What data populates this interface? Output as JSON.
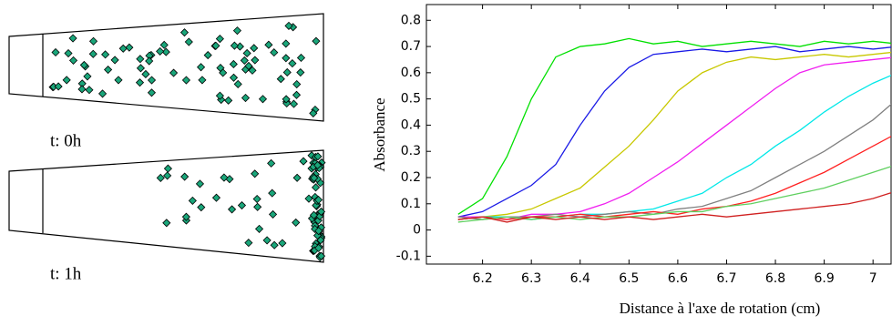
{
  "chart_data": {
    "type": "line",
    "annotations": [
      "t: 0h",
      "t: 1h"
    ],
    "y_label": "Absorbance",
    "x_label": "Distance  à l'axe de rotation (cm)",
    "x": [
      6.15,
      6.2,
      6.25,
      6.3,
      6.35,
      6.4,
      6.45,
      6.5,
      6.55,
      6.6,
      6.65,
      6.7,
      6.75,
      6.8,
      6.85,
      6.9,
      6.95,
      7.0,
      7.05
    ],
    "series": [
      {
        "color": "#00e000",
        "values": [
          0.06,
          0.12,
          0.28,
          0.5,
          0.66,
          0.7,
          0.71,
          0.73,
          0.71,
          0.72,
          0.7,
          0.71,
          0.72,
          0.71,
          0.7,
          0.72,
          0.71,
          0.72,
          0.71
        ]
      },
      {
        "color": "#1a1ae6",
        "values": [
          0.05,
          0.07,
          0.12,
          0.17,
          0.25,
          0.4,
          0.53,
          0.62,
          0.67,
          0.68,
          0.69,
          0.68,
          0.69,
          0.7,
          0.68,
          0.69,
          0.7,
          0.69,
          0.7
        ]
      },
      {
        "color": "#c8c800",
        "values": [
          0.04,
          0.05,
          0.06,
          0.08,
          0.12,
          0.16,
          0.24,
          0.32,
          0.42,
          0.53,
          0.6,
          0.64,
          0.66,
          0.65,
          0.66,
          0.67,
          0.66,
          0.67,
          0.68
        ]
      },
      {
        "color": "#f020f0",
        "values": [
          0.05,
          0.05,
          0.04,
          0.06,
          0.06,
          0.07,
          0.1,
          0.14,
          0.2,
          0.26,
          0.33,
          0.4,
          0.47,
          0.54,
          0.6,
          0.63,
          0.64,
          0.65,
          0.66
        ]
      },
      {
        "color": "#00e8e8",
        "values": [
          0.04,
          0.05,
          0.05,
          0.04,
          0.05,
          0.06,
          0.06,
          0.07,
          0.08,
          0.11,
          0.14,
          0.2,
          0.25,
          0.32,
          0.38,
          0.45,
          0.51,
          0.56,
          0.6
        ]
      },
      {
        "color": "#808080",
        "values": [
          0.05,
          0.04,
          0.05,
          0.05,
          0.06,
          0.05,
          0.06,
          0.07,
          0.06,
          0.08,
          0.09,
          0.12,
          0.15,
          0.2,
          0.25,
          0.3,
          0.36,
          0.42,
          0.5
        ]
      },
      {
        "color": "#ff2020",
        "values": [
          0.04,
          0.05,
          0.04,
          0.05,
          0.05,
          0.06,
          0.05,
          0.06,
          0.07,
          0.06,
          0.08,
          0.09,
          0.11,
          0.14,
          0.18,
          0.22,
          0.27,
          0.32,
          0.37
        ]
      },
      {
        "color": "#60d060",
        "values": [
          0.03,
          0.04,
          0.05,
          0.04,
          0.05,
          0.04,
          0.05,
          0.05,
          0.06,
          0.07,
          0.07,
          0.09,
          0.1,
          0.12,
          0.14,
          0.16,
          0.19,
          0.22,
          0.25
        ]
      },
      {
        "color": "#d02020",
        "values": [
          0.04,
          0.05,
          0.03,
          0.05,
          0.04,
          0.05,
          0.04,
          0.05,
          0.04,
          0.05,
          0.06,
          0.05,
          0.06,
          0.07,
          0.08,
          0.09,
          0.1,
          0.12,
          0.15
        ]
      }
    ],
    "xlim": [
      6.085,
      7.037
    ],
    "xticks": [
      6.2,
      6.3,
      6.4,
      6.5,
      6.6,
      6.7,
      6.8,
      6.9,
      7
    ],
    "ylim": [
      -0.13,
      0.86
    ],
    "yticks": [
      -0.1,
      0,
      0.1,
      0.2,
      0.3,
      0.4,
      0.5,
      0.6,
      0.7,
      0.8
    ],
    "grid": false
  }
}
